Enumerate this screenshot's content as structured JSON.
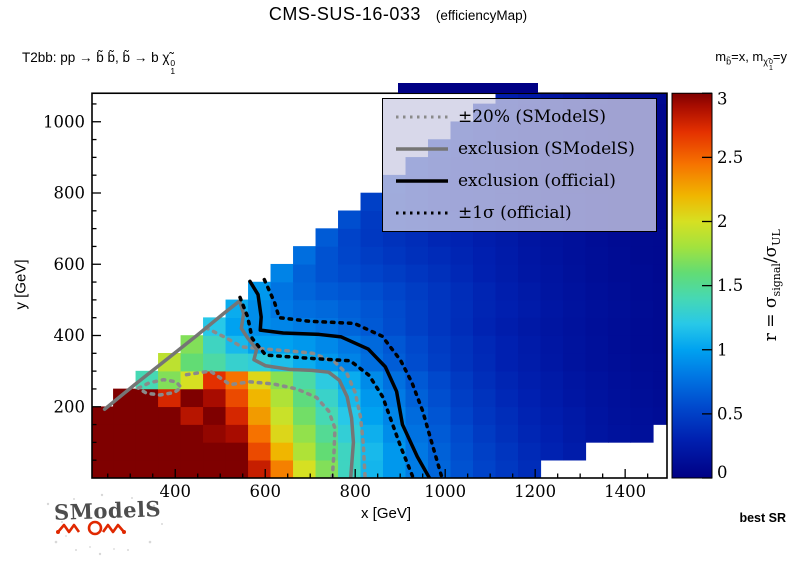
{
  "header": {
    "title": "CMS-SUS-16-033",
    "subtitle": "(efficiencyMap)"
  },
  "process": {
    "prefix": "T2bb: pp → b̃ b̃,  b̃ → b χ̃",
    "chi_sup": "0",
    "chi_sub": "1"
  },
  "mass_note": {
    "m1": "m",
    "m1_sub": "b̃",
    "mid": "=x,  m",
    "chi": "χ̃",
    "chi_sup": "0",
    "chi_sub": "1",
    "tail": "=y"
  },
  "axes": {
    "x_title": "x [GeV]",
    "y_title": "y [GeV]"
  },
  "colorbar_label": {
    "pre": "r = σ",
    "sub1": "signal",
    "slash": "/σ",
    "sub2": "UL"
  },
  "misc": {
    "best_sr": "best SR",
    "watermark": "SModelS"
  },
  "chart_data": {
    "type": "heatmap",
    "title": "CMS-SUS-16-033 (efficiencyMap)",
    "xlabel": "x [GeV]",
    "ylabel": "y [GeV]",
    "zlabel": "r = sigma_signal / sigma_UL",
    "xlim": [
      215,
      1493
    ],
    "ylim": [
      0,
      1080
    ],
    "zlim": [
      0,
      3
    ],
    "xticks": [
      400,
      600,
      800,
      1000,
      1200,
      1400
    ],
    "yticks": [
      200,
      400,
      600,
      800,
      1000
    ],
    "zticks": [
      0,
      0.5,
      1,
      1.5,
      2,
      2.5,
      3
    ],
    "minor_step": 50,
    "palette": [
      {
        "v": 0.0,
        "c": "#000084"
      },
      {
        "v": 0.3,
        "c": "#0020b0"
      },
      {
        "v": 0.55,
        "c": "#0048cc"
      },
      {
        "v": 0.8,
        "c": "#0078e4"
      },
      {
        "v": 1.0,
        "c": "#00a2f0"
      },
      {
        "v": 1.2,
        "c": "#28c8e8"
      },
      {
        "v": 1.4,
        "c": "#46d8b4"
      },
      {
        "v": 1.6,
        "c": "#62dc74"
      },
      {
        "v": 1.8,
        "c": "#a2e23e"
      },
      {
        "v": 2.0,
        "c": "#d6e022"
      },
      {
        "v": 2.2,
        "c": "#f0b600"
      },
      {
        "v": 2.45,
        "c": "#f67200"
      },
      {
        "v": 2.7,
        "c": "#e43000"
      },
      {
        "v": 2.9,
        "c": "#a80c00"
      },
      {
        "v": 3.0,
        "c": "#7f0000"
      }
    ],
    "grid": {
      "x0": 212.5,
      "dx": 50,
      "y0": 0,
      "dy": 50,
      "note": "rows bottom-to-top, r values; null = no scan point (white)",
      "rows": [
        [
          3,
          3,
          3,
          3,
          3,
          3,
          3,
          2.8,
          2.4,
          2.0,
          1.7,
          1.35,
          1.1,
          0.95,
          0.82,
          0.7,
          0.6,
          0.52,
          0.45,
          0.38,
          null,
          null,
          null,
          null,
          null,
          null,
          null
        ],
        [
          3,
          3,
          3,
          3,
          3,
          3,
          3,
          2.6,
          2.2,
          1.85,
          1.6,
          1.35,
          1.12,
          0.95,
          0.8,
          0.68,
          0.58,
          0.5,
          0.43,
          0.36,
          0.31,
          0.26,
          null,
          null,
          null,
          null,
          null
        ],
        [
          3,
          3,
          3,
          3,
          3,
          2.95,
          2.9,
          2.45,
          2.05,
          1.75,
          1.5,
          1.27,
          1.07,
          0.9,
          0.77,
          0.65,
          0.56,
          0.47,
          0.4,
          0.34,
          0.29,
          0.24,
          0.2,
          0.17,
          0.15,
          null,
          null
        ],
        [
          3,
          3,
          3,
          3,
          2.85,
          3,
          2.75,
          2.3,
          1.95,
          1.65,
          1.4,
          1.2,
          1.0,
          0.86,
          0.73,
          0.62,
          0.52,
          0.44,
          0.38,
          0.32,
          0.27,
          0.23,
          0.19,
          0.16,
          0.14,
          0.12,
          0.1
        ],
        [
          null,
          3,
          3,
          2.75,
          3,
          2.9,
          2.6,
          2.2,
          1.85,
          1.57,
          1.32,
          1.12,
          0.95,
          0.81,
          0.68,
          0.58,
          0.49,
          0.42,
          0.35,
          0.3,
          0.25,
          0.21,
          0.18,
          0.15,
          0.13,
          0.11,
          0.09
        ],
        [
          null,
          null,
          1.4,
          1.7,
          2.0,
          2.7,
          2.45,
          2.05,
          1.72,
          1.45,
          1.23,
          1.05,
          0.89,
          0.76,
          0.64,
          0.55,
          0.46,
          0.39,
          0.33,
          0.28,
          0.24,
          0.2,
          0.17,
          0.14,
          0.12,
          0.1,
          0.09
        ],
        [
          null,
          null,
          null,
          1.9,
          1.6,
          1.45,
          1.3,
          1.25,
          1.15,
          1.05,
          0.95,
          0.85,
          0.75,
          0.66,
          0.57,
          0.49,
          0.42,
          0.36,
          0.3,
          0.26,
          0.22,
          0.18,
          0.15,
          0.13,
          0.11,
          0.1,
          0.08
        ],
        [
          null,
          null,
          null,
          null,
          1.7,
          1.35,
          1.12,
          1.0,
          1.0,
          0.95,
          0.88,
          0.8,
          0.72,
          0.63,
          0.55,
          0.47,
          0.41,
          0.35,
          0.3,
          0.25,
          0.21,
          0.18,
          0.15,
          0.12,
          0.1,
          0.09,
          0.08
        ],
        [
          null,
          null,
          null,
          null,
          null,
          1.2,
          1.0,
          0.9,
          0.86,
          0.82,
          0.77,
          0.7,
          0.64,
          0.57,
          0.5,
          0.44,
          0.38,
          0.32,
          0.27,
          0.23,
          0.2,
          0.17,
          0.14,
          0.12,
          0.1,
          0.09,
          0.07
        ],
        [
          null,
          null,
          null,
          null,
          null,
          null,
          1.05,
          0.9,
          0.8,
          0.75,
          0.72,
          0.67,
          0.62,
          0.56,
          0.5,
          0.44,
          0.39,
          0.33,
          0.29,
          0.25,
          0.21,
          0.18,
          0.15,
          0.13,
          0.11,
          0.09,
          0.08
        ],
        [
          null,
          null,
          null,
          null,
          null,
          null,
          null,
          0.95,
          0.78,
          0.7,
          0.65,
          0.62,
          0.58,
          0.53,
          0.48,
          0.43,
          0.38,
          0.33,
          0.28,
          0.24,
          0.2,
          0.17,
          0.14,
          0.12,
          0.1,
          0.09,
          0.08
        ],
        [
          null,
          null,
          null,
          null,
          null,
          null,
          null,
          null,
          0.85,
          0.68,
          0.6,
          0.56,
          0.52,
          0.48,
          0.44,
          0.4,
          0.35,
          0.3,
          0.26,
          0.22,
          0.19,
          0.16,
          0.13,
          0.11,
          0.1,
          0.08,
          0.07
        ],
        [
          null,
          null,
          null,
          null,
          null,
          null,
          null,
          null,
          null,
          0.75,
          0.6,
          0.53,
          0.48,
          0.44,
          0.4,
          0.37,
          0.33,
          0.29,
          0.25,
          0.21,
          0.18,
          0.15,
          0.13,
          0.11,
          0.09,
          0.08,
          0.07
        ],
        [
          null,
          null,
          null,
          null,
          null,
          null,
          null,
          null,
          null,
          null,
          0.65,
          0.52,
          0.45,
          0.41,
          0.38,
          0.34,
          0.31,
          0.27,
          0.24,
          0.2,
          0.17,
          0.15,
          0.12,
          0.1,
          0.09,
          0.08,
          0.07
        ],
        [
          null,
          null,
          null,
          null,
          null,
          null,
          null,
          null,
          null,
          null,
          null,
          0.58,
          0.46,
          0.4,
          0.36,
          0.33,
          0.3,
          0.26,
          0.23,
          0.2,
          0.17,
          0.14,
          0.12,
          0.1,
          0.09,
          0.07,
          0.06
        ],
        [
          null,
          null,
          null,
          null,
          null,
          null,
          null,
          null,
          null,
          null,
          null,
          null,
          0.5,
          0.41,
          0.36,
          0.32,
          0.29,
          0.26,
          0.22,
          0.19,
          0.16,
          0.14,
          0.12,
          0.1,
          0.08,
          0.07,
          0.06
        ],
        [
          null,
          null,
          null,
          null,
          null,
          null,
          null,
          null,
          null,
          null,
          null,
          null,
          null,
          0.45,
          0.37,
          0.32,
          0.28,
          0.25,
          0.22,
          0.19,
          0.16,
          0.13,
          0.11,
          0.09,
          0.08,
          0.07,
          0.06
        ],
        [
          null,
          null,
          null,
          null,
          null,
          null,
          null,
          null,
          null,
          null,
          null,
          null,
          null,
          null,
          0.4,
          0.33,
          0.28,
          0.25,
          0.22,
          0.19,
          0.16,
          0.13,
          0.11,
          0.09,
          0.08,
          0.07,
          0.06
        ],
        [
          null,
          null,
          null,
          null,
          null,
          null,
          null,
          null,
          null,
          null,
          null,
          null,
          null,
          null,
          null,
          0.36,
          0.3,
          0.26,
          0.22,
          0.19,
          0.16,
          0.14,
          0.11,
          0.09,
          0.08,
          0.07,
          0.06
        ],
        [
          null,
          null,
          null,
          null,
          null,
          null,
          null,
          null,
          null,
          null,
          null,
          null,
          null,
          null,
          null,
          null,
          0.33,
          0.27,
          0.23,
          0.2,
          0.17,
          0.14,
          0.12,
          0.1,
          0.08,
          0.07,
          0.06
        ],
        [
          null,
          null,
          null,
          null,
          null,
          null,
          null,
          null,
          null,
          null,
          null,
          null,
          null,
          null,
          null,
          null,
          null,
          0.3,
          0.25,
          0.21,
          0.18,
          0.15,
          0.12,
          0.1,
          0.09,
          0.07,
          0.06
        ],
        [
          null,
          null,
          null,
          null,
          null,
          null,
          null,
          null,
          null,
          null,
          null,
          null,
          null,
          null,
          null,
          null,
          null,
          null,
          0.27,
          0.23,
          0.19,
          0.16,
          0.13,
          0.11,
          0.09,
          0.08,
          0.06
        ]
      ]
    },
    "contours": [
      {
        "name": "pm20-smodels-upper",
        "color": "#8a8a8a",
        "dash": true,
        "width": 3.5,
        "points": [
          [
            468,
            422
          ],
          [
            515,
            392
          ],
          [
            548,
            368
          ],
          [
            600,
            362
          ],
          [
            660,
            356
          ],
          [
            706,
            350
          ],
          [
            755,
            325
          ],
          [
            782,
            292
          ],
          [
            800,
            240
          ],
          [
            812,
            170
          ],
          [
            818,
            95
          ],
          [
            822,
            0
          ]
        ]
      },
      {
        "name": "pm20-smodels-lower",
        "color": "#8a8a8a",
        "dash": true,
        "width": 3.5,
        "points": [
          [
            425,
            290
          ],
          [
            478,
            300
          ],
          [
            522,
            262
          ],
          [
            566,
            270
          ],
          [
            618,
            264
          ],
          [
            670,
            250
          ],
          [
            714,
            226
          ],
          [
            741,
            188
          ],
          [
            755,
            140
          ],
          [
            753,
            75
          ],
          [
            749,
            0
          ]
        ]
      },
      {
        "name": "pm20-smodels-island",
        "color": "#8a8a8a",
        "dash": true,
        "width": 3.5,
        "points": [
          [
            318,
            252
          ],
          [
            342,
            267
          ],
          [
            374,
            276
          ],
          [
            402,
            270
          ],
          [
            413,
            254
          ],
          [
            398,
            240
          ],
          [
            366,
            233
          ],
          [
            336,
            238
          ],
          [
            318,
            252
          ]
        ]
      },
      {
        "name": "exclusion-smodels",
        "color": "#757575",
        "dash": false,
        "width": 3.5,
        "points": [
          [
            243,
            193
          ],
          [
            310,
            262
          ],
          [
            380,
            332
          ],
          [
            448,
            400
          ],
          [
            508,
            462
          ],
          [
            543,
            497
          ],
          [
            552,
            462
          ],
          [
            547,
            420
          ],
          [
            561,
            393
          ],
          [
            581,
            362
          ],
          [
            575,
            332
          ],
          [
            601,
            315
          ],
          [
            654,
            305
          ],
          [
            704,
            302
          ],
          [
            741,
            297
          ],
          [
            765,
            274
          ],
          [
            782,
            228
          ],
          [
            792,
            168
          ],
          [
            796,
            100
          ],
          [
            790,
            0
          ]
        ]
      },
      {
        "name": "exclusion-official",
        "color": "#000000",
        "dash": false,
        "width": 3.5,
        "points": [
          [
            566,
            552
          ],
          [
            584,
            515
          ],
          [
            591,
            452
          ],
          [
            589,
            415
          ],
          [
            640,
            407
          ],
          [
            720,
            403
          ],
          [
            769,
            396
          ],
          [
            829,
            362
          ],
          [
            867,
            312
          ],
          [
            892,
            243
          ],
          [
            905,
            150
          ],
          [
            938,
            60
          ],
          [
            965,
            0
          ]
        ]
      },
      {
        "name": "plus1sigma-official",
        "color": "#000000",
        "dash": true,
        "width": 3.5,
        "points": [
          [
            598,
            557
          ],
          [
            621,
            492
          ],
          [
            631,
            450
          ],
          [
            698,
            440
          ],
          [
            798,
            434
          ],
          [
            860,
            398
          ],
          [
            901,
            330
          ],
          [
            926,
            268
          ],
          [
            950,
            188
          ],
          [
            970,
            100
          ],
          [
            993,
            0
          ]
        ]
      },
      {
        "name": "minus1sigma-official",
        "color": "#000000",
        "dash": true,
        "width": 3.5,
        "points": [
          [
            544,
            507
          ],
          [
            561,
            452
          ],
          [
            571,
            392
          ],
          [
            601,
            345
          ],
          [
            699,
            336
          ],
          [
            789,
            329
          ],
          [
            831,
            288
          ],
          [
            861,
            228
          ],
          [
            881,
            158
          ],
          [
            901,
            88
          ],
          [
            929,
            0
          ]
        ]
      }
    ],
    "legend": [
      {
        "label": "±20% (SModelS)",
        "color": "#8a8a8a",
        "dash": true
      },
      {
        "label": "exclusion (SModelS)",
        "color": "#757575",
        "dash": false
      },
      {
        "label": "exclusion (official)",
        "color": "#000000",
        "dash": false
      },
      {
        "label": "±1σ (official)",
        "color": "#000000",
        "dash": true
      }
    ]
  }
}
